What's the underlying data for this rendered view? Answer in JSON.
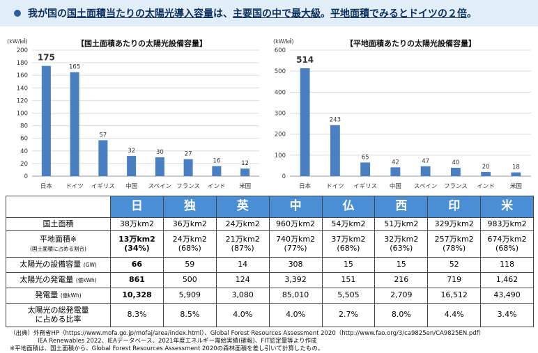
{
  "headline": {
    "part1": "我が国の",
    "part2": "国土面積当たりの太陽光導入容量",
    "part3": "は、",
    "part4": "主要国の中で最大級",
    "part5": "。",
    "part6": "平地面積でみるとドイツの２倍",
    "part7": "。"
  },
  "colors": {
    "bar": "#4a7fc1",
    "header_bg": "#4a8fd6",
    "headline_bg": "#e1eef8",
    "headline_text": "#0c2e5c"
  },
  "chart_data": [
    {
      "type": "bar",
      "title": "【国土面積あたりの太陽光設備容量】",
      "ylabel": "(kW/㎢)",
      "categories": [
        "日本",
        "ドイツ",
        "イギリス",
        "中国",
        "スペイン",
        "フランス",
        "インド",
        "米国"
      ],
      "values": [
        175,
        165,
        57,
        32,
        30,
        27,
        16,
        12
      ],
      "ylim": [
        0,
        200
      ],
      "yticks": [
        0,
        20,
        40,
        60,
        80,
        100,
        120,
        140,
        160,
        180,
        200
      ],
      "grid": true
    },
    {
      "type": "bar",
      "title": "【平地面積あたりの太陽光設備容量】",
      "ylabel": "(kW/㎢)",
      "categories": [
        "日本",
        "ドイツ",
        "イギリス",
        "中国",
        "スペイン",
        "フランス",
        "インド",
        "米国"
      ],
      "values": [
        514,
        243,
        65,
        42,
        47,
        40,
        20,
        18
      ],
      "ylim": [
        0,
        600
      ],
      "yticks": [
        0,
        100,
        200,
        300,
        400,
        500,
        600
      ],
      "grid": true
    }
  ],
  "table": {
    "countries": [
      "日",
      "独",
      "英",
      "中",
      "仏",
      "西",
      "印",
      "米"
    ],
    "rows": [
      {
        "label": "国土面積",
        "sub": "",
        "values": [
          "38万km2",
          "36万km2",
          "24万km2",
          "960万km2",
          "54万km2",
          "51万km2",
          "329万km2",
          "983万km2"
        ]
      },
      {
        "label": "平地面積※",
        "sub": "(国土面積に占める割合)",
        "values": [
          "13万km2",
          "24万km2",
          "21万km2",
          "740万km2",
          "37万km2",
          "32万km2",
          "257万km2",
          "674万km2"
        ],
        "values2": [
          "(34%)",
          "(68%)",
          "(87%)",
          "(77%)",
          "(68%)",
          "(63%)",
          "(78%)",
          "(68%)"
        ]
      },
      {
        "label": "太陽光の設備容量",
        "sub": "(GW)",
        "values": [
          "66",
          "59",
          "14",
          "308",
          "15",
          "15",
          "52",
          "118"
        ]
      },
      {
        "label": "太陽光の発電量",
        "sub": "(億kWh)",
        "values": [
          "861",
          "500",
          "124",
          "3,392",
          "151",
          "216",
          "719",
          "1,462"
        ]
      },
      {
        "label": "発電量",
        "sub": "(億kWh)",
        "values": [
          "10,328",
          "5,909",
          "3,080",
          "85,010",
          "5,505",
          "2,709",
          "16,512",
          "43,490"
        ]
      },
      {
        "label": "太陽光の総発電量",
        "label2": "に占める比率",
        "sub": "",
        "values": [
          "8.3%",
          "8.5%",
          "4.0%",
          "4.0%",
          "2.7%",
          "8.0%",
          "4.4%",
          "3.4%"
        ]
      }
    ]
  },
  "notes": [
    "（出典）外務省HP（https://www.mofa.go.jp/mofaj/area/index.html）、Global Forest Resources Assessment 2020（http://www.fao.org/3/ca9825en/CA9825EN.pdf）",
    "IEA Renewables 2022、IEAデータベース、2021年度エネルギー需給実績(確報)、FIT認定量等より作成",
    "※平地面積は、国土面積から、Global Forest Resources Assessment 2020の森林面積を差し引いて計算したもの。"
  ]
}
